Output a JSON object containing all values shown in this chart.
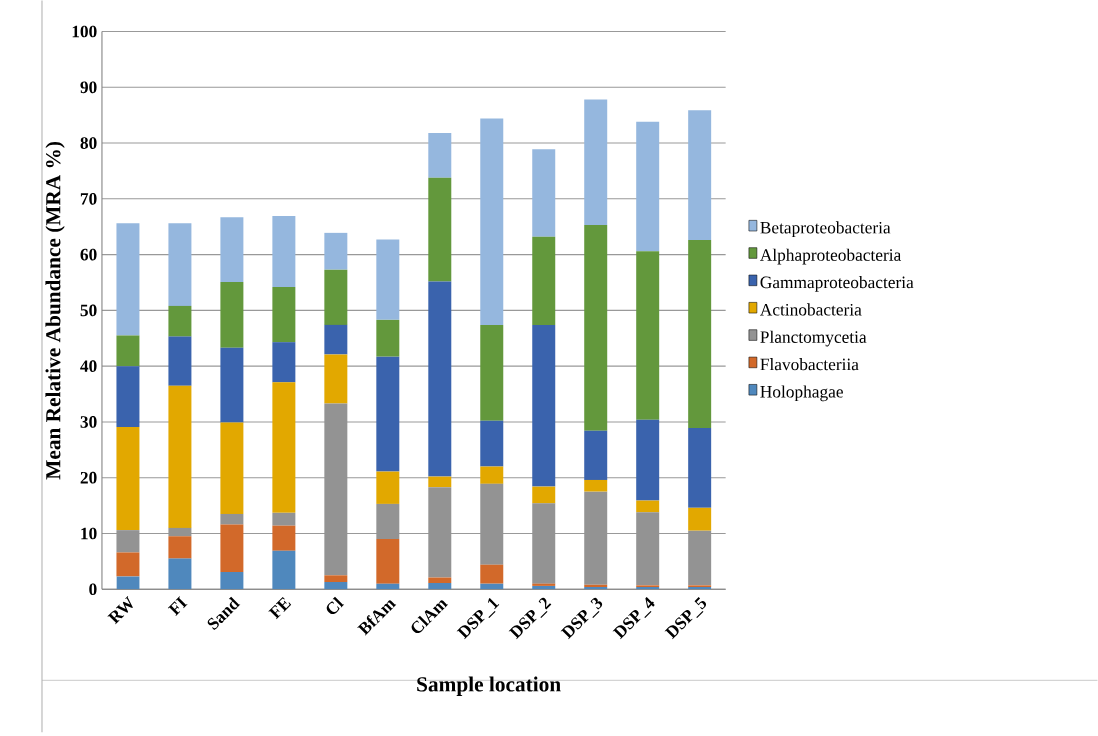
{
  "chart_data": {
    "type": "bar",
    "stacked": true,
    "xlabel": "Sample location",
    "ylabel": "Mean Relative Abundance (MRA %)",
    "categories": [
      "RW",
      "FI",
      "Sand",
      "FE",
      "Cl",
      "BfAm",
      "ClAm",
      "DSP_1",
      "DSP_2",
      "DSP_3",
      "DSP_4",
      "DSP_5"
    ],
    "series": [
      {
        "name": "Holophagae",
        "color": "#4f88bd",
        "values": [
          2.3,
          5.5,
          3.1,
          6.9,
          1.3,
          1.0,
          1.1,
          1.0,
          0.6,
          0.4,
          0.4,
          0.4
        ]
      },
      {
        "name": "Flavobacteriia",
        "color": "#d2692a",
        "values": [
          4.3,
          4.0,
          8.5,
          4.5,
          1.2,
          8.0,
          1.0,
          3.4,
          0.4,
          0.4,
          0.3,
          0.3
        ]
      },
      {
        "name": "Planctomycetia",
        "color": "#939393",
        "values": [
          4.0,
          1.5,
          1.9,
          2.3,
          30.8,
          6.3,
          16.2,
          14.5,
          14.4,
          16.7,
          13.1,
          9.8
        ]
      },
      {
        "name": "Actinobacteria",
        "color": "#e2a800",
        "values": [
          18.5,
          25.5,
          16.4,
          23.4,
          8.8,
          5.8,
          1.9,
          3.1,
          3.0,
          2.1,
          2.1,
          4.1
        ]
      },
      {
        "name": "Gammaproteobacteria",
        "color": "#3a63ad",
        "values": [
          10.9,
          8.8,
          13.4,
          7.2,
          5.3,
          20.6,
          35.0,
          8.2,
          29.0,
          8.8,
          14.5,
          14.3
        ]
      },
      {
        "name": "Alphaproteobacteria",
        "color": "#63983c",
        "values": [
          5.5,
          5.5,
          11.8,
          9.9,
          9.9,
          6.6,
          18.6,
          17.2,
          15.8,
          36.9,
          30.2,
          33.7
        ]
      },
      {
        "name": "Betaproteobacteria",
        "color": "#95b7de",
        "values": [
          20.1,
          14.8,
          11.6,
          12.7,
          6.6,
          14.4,
          8.0,
          37.0,
          15.7,
          22.5,
          23.2,
          23.3
        ]
      }
    ],
    "ylim": [
      0,
      100
    ],
    "yticks": [
      0,
      10,
      20,
      30,
      40,
      50,
      60,
      70,
      80,
      90,
      100
    ],
    "grid": "y",
    "legend": "right"
  }
}
